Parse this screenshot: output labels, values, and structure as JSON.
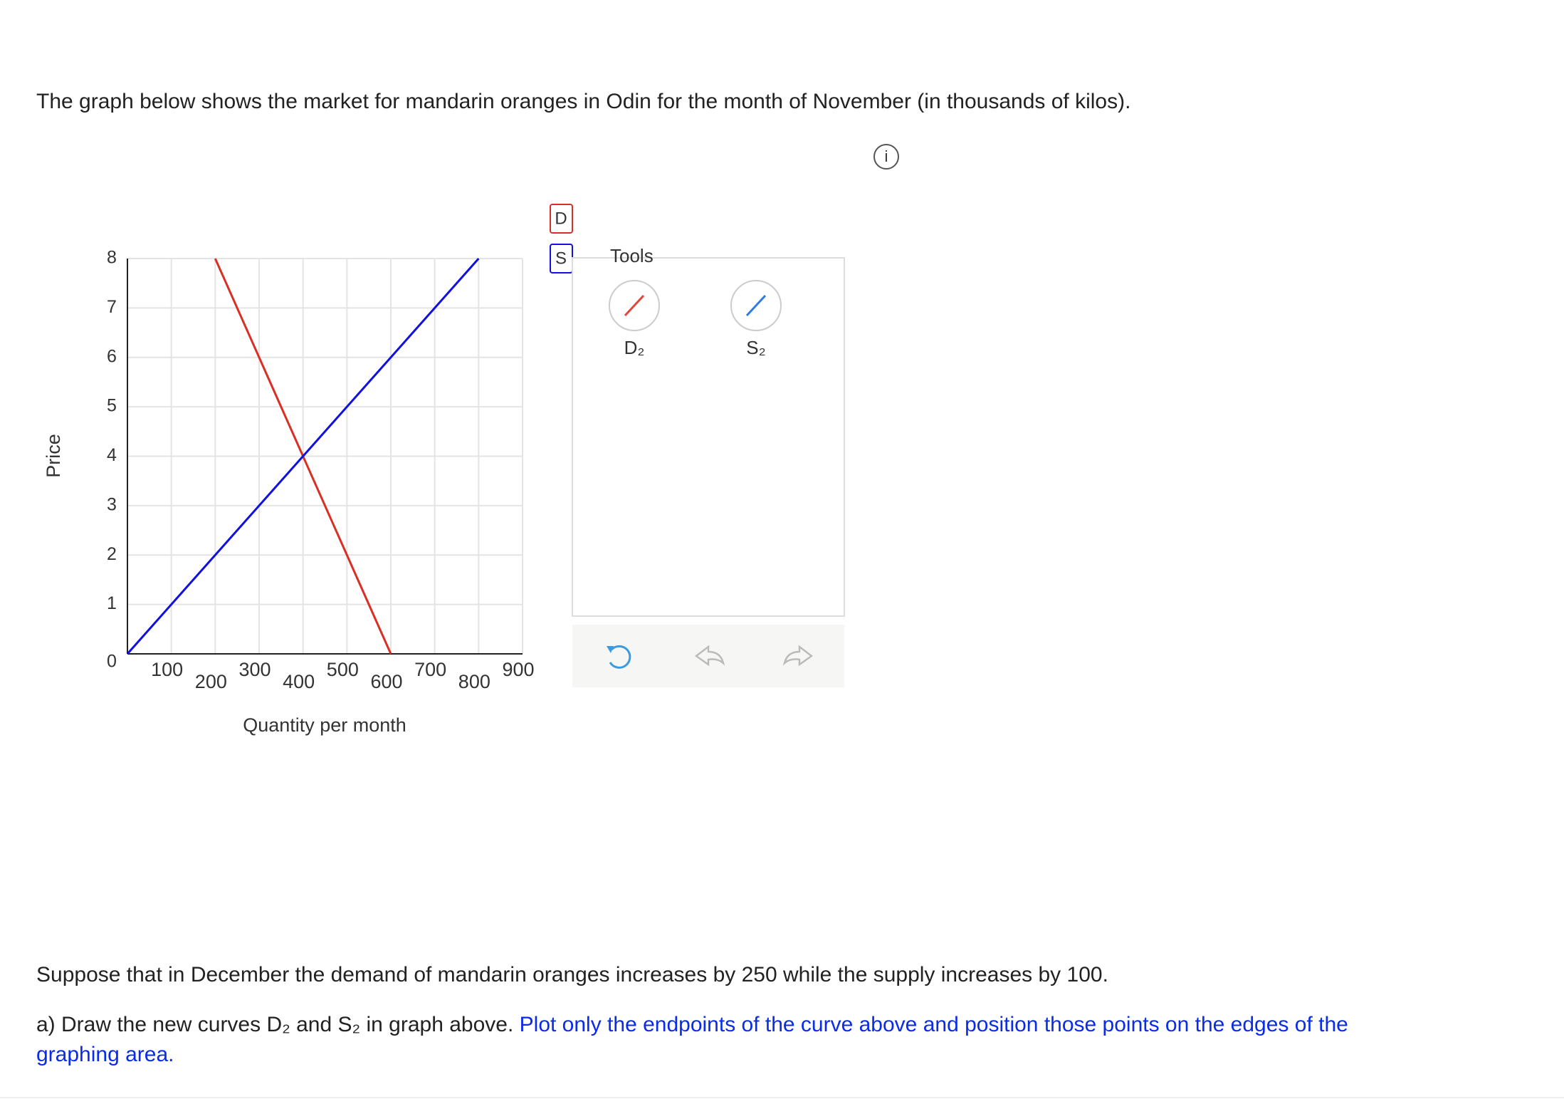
{
  "question": {
    "intro": "The graph below shows the market for mandarin oranges in Odin for the month of November (in thousands of kilos).",
    "scenario": "Suppose that in December the demand of mandarin oranges increases by 250 while the supply increases by 100.",
    "task": "a) Draw the new curves D₂ and S₂ in graph above.",
    "instruction": "Plot only the endpoints of the curve above and position those points on the edges of the graphing area."
  },
  "chart_data": {
    "type": "line",
    "x_label": "Quantity per month",
    "y_label": "Price",
    "xlim": [
      0,
      900
    ],
    "ylim": [
      0,
      8
    ],
    "xticks": [
      100,
      200,
      300,
      400,
      500,
      600,
      700,
      800,
      900
    ],
    "yticks": [
      0,
      1,
      2,
      3,
      4,
      5,
      6,
      7,
      8
    ],
    "grid": true,
    "series": [
      {
        "name": "D",
        "color": "#d93025",
        "x": [
          200,
          600
        ],
        "values": [
          8,
          0
        ]
      },
      {
        "name": "S",
        "color": "#1010e0",
        "x": [
          0,
          800
        ],
        "values": [
          0,
          8
        ]
      }
    ]
  },
  "tools": {
    "title": "Tools",
    "items": [
      {
        "label": "D₂",
        "color": "#e0463c"
      },
      {
        "label": "S₂",
        "color": "#2f7be6"
      }
    ]
  }
}
